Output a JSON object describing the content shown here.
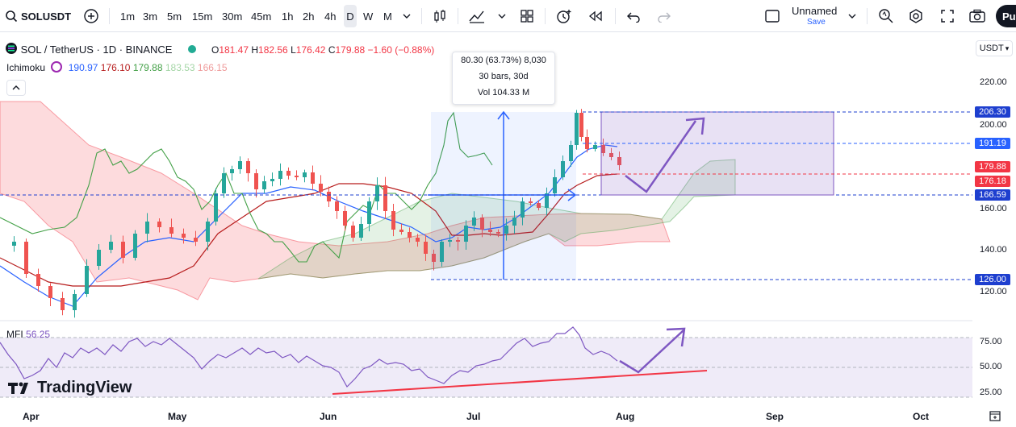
{
  "toolbar": {
    "symbol": "SOLUSDT",
    "intervals": [
      "1m",
      "3m",
      "5m",
      "15m",
      "30m",
      "45m",
      "1h",
      "2h",
      "4h",
      "D",
      "W",
      "M"
    ],
    "active_interval": "D",
    "layout_name": "Unnamed",
    "layout_status": "Save",
    "publish_label": "Pu"
  },
  "legend": {
    "title": "SOL / TetherUS · 1D · BINANCE",
    "open_label": "O",
    "open": "181.47",
    "high_label": "H",
    "high": "182.56",
    "low_label": "L",
    "low": "176.42",
    "close_label": "C",
    "close": "179.88",
    "change": "−1.60 (−0.88%)",
    "indicator": "Ichimoku",
    "ichimoku_values": [
      "190.97",
      "176.10",
      "179.88",
      "183.53",
      "166.15"
    ],
    "mfi_label": "MFI",
    "mfi_value": "56.25",
    "currency": "USDT"
  },
  "tooltip": {
    "line1": "80.30 (63.73%) 8,030",
    "line2": "30 bars, 30d",
    "line3": "Vol 104.33 M"
  },
  "price_axis": {
    "ticks": [
      "220.00",
      "200.00",
      "160.00",
      "140.00",
      "120.00"
    ],
    "tags": [
      "206.30",
      "191.19",
      "179.88",
      "176.18",
      "166.59",
      "126.00"
    ]
  },
  "mfi_axis": {
    "ticks": [
      "75.00",
      "50.00",
      "25.00"
    ]
  },
  "time_axis": {
    "labels": [
      "Apr",
      "May",
      "Jun",
      "Jul",
      "Aug",
      "Sep",
      "Oct"
    ]
  },
  "brand": "TradingView",
  "colors": {
    "up": "#26a69a",
    "down": "#ef5350",
    "conversion": "#2962ff",
    "base": "#b71c1c",
    "lagging": "#43a047",
    "accent_purple": "#7e57c2",
    "tag_blue": "#1e3fcf",
    "tag_red": "#f23645"
  }
}
